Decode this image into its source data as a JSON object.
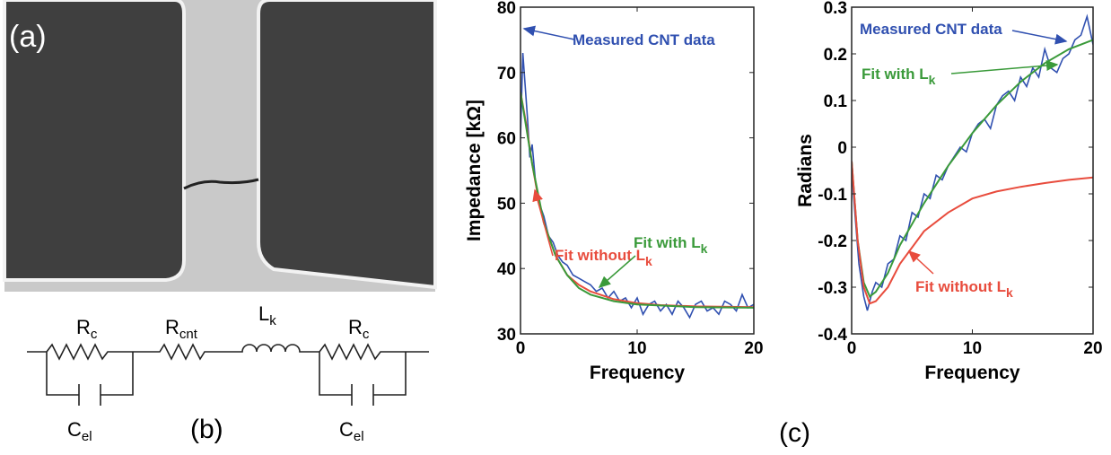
{
  "panel_labels": {
    "a": "(a)",
    "b": "(b)",
    "c": "(c)"
  },
  "circuit": {
    "labels": [
      {
        "text": "R",
        "sub": "c"
      },
      {
        "text": "R",
        "sub": "cnt"
      },
      {
        "text": "L",
        "sub": "k"
      },
      {
        "text": "R",
        "sub": "c"
      },
      {
        "text": "C",
        "sub": "el"
      },
      {
        "text": "C",
        "sub": "el"
      }
    ]
  },
  "chart_data": [
    {
      "type": "line",
      "xlabel": "Frequency",
      "ylabel": "Impedance [kΩ]",
      "xlim": [
        0,
        20
      ],
      "ylim": [
        30,
        80
      ],
      "xticks": [
        0,
        10,
        20
      ],
      "yticks": [
        30,
        40,
        50,
        60,
        70,
        80
      ],
      "series": [
        {
          "color": "#3050b0",
          "x": [
            0,
            0.2,
            0.4,
            0.6,
            0.8,
            1,
            1.3,
            1.6,
            2,
            2.4,
            2.8,
            3.2,
            3.6,
            4,
            4.5,
            5,
            5.5,
            6,
            6.5,
            7,
            7.5,
            8,
            8.5,
            9,
            9.5,
            10,
            10.5,
            11,
            11.5,
            12,
            12.5,
            13,
            13.5,
            14,
            14.5,
            15,
            15.5,
            16,
            16.5,
            17,
            17.5,
            18,
            18.5,
            19,
            19.5,
            20
          ],
          "values": [
            60,
            73,
            68,
            63,
            57,
            59,
            53,
            50,
            48,
            45,
            44,
            42,
            41,
            40.5,
            39,
            38.5,
            38,
            37.5,
            36.5,
            37,
            35.5,
            36.5,
            35,
            35.5,
            34,
            35.5,
            33,
            34.5,
            35,
            33.5,
            34.5,
            33,
            35,
            34,
            32.5,
            34.5,
            35,
            33.5,
            34,
            33,
            35,
            34.5,
            33.5,
            36,
            34,
            34.5
          ]
        },
        {
          "color": "#e84c3d",
          "x": [
            0,
            0.5,
            1,
            1.5,
            2,
            3,
            4,
            5,
            6,
            8,
            10,
            12,
            15,
            20
          ],
          "values": [
            67,
            62,
            56,
            51,
            47,
            42,
            39,
            37.5,
            36.5,
            35.3,
            34.7,
            34.4,
            34.2,
            34.1
          ]
        },
        {
          "color": "#3a9a3a",
          "x": [
            0,
            1,
            2,
            3,
            4,
            5,
            6,
            8,
            10,
            15,
            20
          ],
          "values": [
            67,
            56,
            47,
            42,
            39,
            37,
            36,
            35,
            34.5,
            34.1,
            34
          ]
        }
      ],
      "annotations": [
        {
          "text": "Measured CNT data",
          "color": "#3050b0"
        },
        {
          "text": "Fit without L",
          "sub": "k",
          "color": "#e84c3d"
        },
        {
          "text": "Fit with L",
          "sub": "k",
          "color": "#3a9a3a"
        }
      ]
    },
    {
      "type": "line",
      "xlabel": "Frequency",
      "ylabel": "Radians",
      "xlim": [
        0,
        20
      ],
      "ylim": [
        -0.4,
        0.3
      ],
      "xticks": [
        0,
        10,
        20
      ],
      "yticks": [
        -0.4,
        -0.3,
        -0.2,
        -0.1,
        0,
        0.1,
        0.2,
        0.3
      ],
      "series": [
        {
          "color": "#3050b0",
          "x": [
            0,
            0.3,
            0.6,
            1,
            1.3,
            1.7,
            2,
            2.5,
            3,
            3.5,
            4,
            4.5,
            5,
            5.5,
            6,
            6.5,
            7,
            7.5,
            8,
            8.5,
            9,
            9.5,
            10,
            10.5,
            11,
            11.5,
            12,
            12.5,
            13,
            13.5,
            14,
            14.5,
            15,
            15.5,
            16,
            16.5,
            17,
            17.5,
            18,
            18.5,
            19,
            19.5,
            20
          ],
          "values": [
            -0.05,
            -0.15,
            -0.25,
            -0.32,
            -0.35,
            -0.31,
            -0.29,
            -0.3,
            -0.25,
            -0.24,
            -0.19,
            -0.2,
            -0.14,
            -0.15,
            -0.1,
            -0.11,
            -0.06,
            -0.07,
            -0.04,
            -0.02,
            0,
            -0.01,
            0.03,
            0.05,
            0.06,
            0.04,
            0.09,
            0.11,
            0.12,
            0.1,
            0.15,
            0.13,
            0.17,
            0.15,
            0.21,
            0.17,
            0.16,
            0.19,
            0.2,
            0.23,
            0.24,
            0.28,
            0.22
          ]
        },
        {
          "color": "#3a9a3a",
          "x": [
            0,
            0.5,
            1,
            1.5,
            2,
            3,
            4,
            6,
            8,
            10,
            12,
            14,
            16,
            18,
            20
          ],
          "values": [
            -0.03,
            -0.2,
            -0.29,
            -0.32,
            -0.31,
            -0.27,
            -0.21,
            -0.12,
            -0.04,
            0.03,
            0.09,
            0.14,
            0.18,
            0.21,
            0.23
          ]
        },
        {
          "color": "#e84c3d",
          "x": [
            0,
            0.5,
            1,
            1.5,
            2,
            3,
            4,
            6,
            8,
            10,
            12,
            14,
            16,
            18,
            20
          ],
          "values": [
            -0.03,
            -0.2,
            -0.3,
            -0.335,
            -0.33,
            -0.3,
            -0.25,
            -0.18,
            -0.14,
            -0.11,
            -0.095,
            -0.085,
            -0.077,
            -0.07,
            -0.065
          ]
        }
      ],
      "annotations": [
        {
          "text": "Measured CNT data",
          "color": "#3050b0"
        },
        {
          "text": "Fit with L",
          "sub": "k",
          "color": "#3a9a3a"
        },
        {
          "text": "Fit without L",
          "sub": "k",
          "color": "#e84c3d"
        }
      ]
    }
  ]
}
